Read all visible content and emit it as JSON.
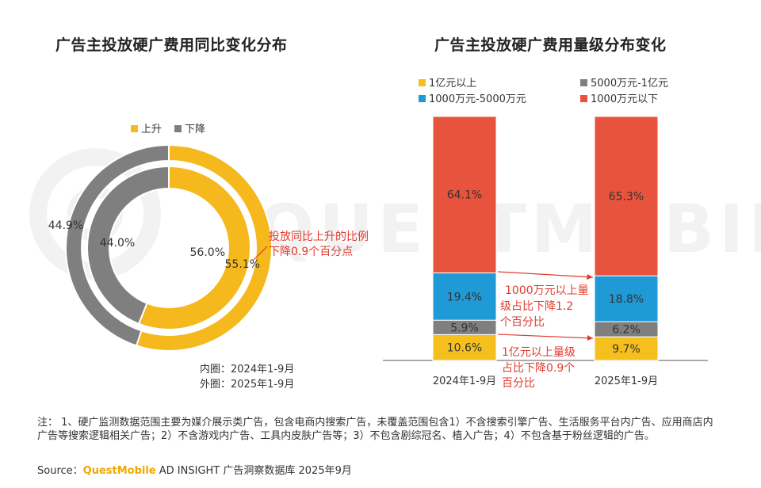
{
  "left_title": "广告主投放硬广费用同比变化分布",
  "right_title": "广告主投放硬广费用量级分布变化",
  "footnote": "注： 1、硬广监测数据范围主要为媒介展示类广告，包含电商内搜索广告，未覆盖范围包含1）不含搜索引擎广告、生活服务平台内广告、应用商店内广告等搜索逻辑相关广告；2）不含游戏内广告、工具内皮肤广告等；3）不包含剧综冠名、植入广告；4）不包含基于粉丝逻辑的广告。",
  "source": {
    "prefix": "Source：",
    "brand": "QuestMobile",
    "suffix": " AD INSIGHT 广告洞察数据库 2025年9月"
  },
  "colors": {
    "rise": "#f5b81d",
    "fall": "#7f7f7f",
    "above_1yi": "#f5c01e",
    "5000w_1yi": "#7f7f7f",
    "1000w_5000w": "#1f9ad6",
    "below_1000w": "#e8533d",
    "annotation": "#e03c2f",
    "watermark": "#f2f2f2"
  },
  "watermark": "QUESTMOBILE",
  "chart_data": [
    {
      "type": "pie",
      "variant": "double-donut",
      "legend": [
        "上升",
        "下降"
      ],
      "legend_position": "top",
      "inner_label": "内圈：2024年1-9月",
      "outer_label": "外圈：2025年1-9月",
      "rings": [
        {
          "name": "2024年1-9月",
          "ring": "inner",
          "slices": [
            {
              "label": "上升",
              "value": 56.0,
              "text": "56.0%"
            },
            {
              "label": "下降",
              "value": 44.0,
              "text": "44.0%"
            }
          ]
        },
        {
          "name": "2025年1-9月",
          "ring": "outer",
          "slices": [
            {
              "label": "上升",
              "value": 55.1,
              "text": "55.1%"
            },
            {
              "label": "下降",
              "value": 44.9,
              "text": "44.9%"
            }
          ]
        }
      ],
      "annotation": [
        "投放同比上升的比例",
        "下降0.9个百分点"
      ]
    },
    {
      "type": "bar",
      "variant": "stacked-100",
      "legend_position": "top",
      "categories": [
        "2024年1-9月",
        "2025年1-9月"
      ],
      "series": [
        {
          "name": "1亿元以上",
          "values": [
            10.6,
            9.7
          ],
          "labels": [
            "10.6%",
            "9.7%"
          ]
        },
        {
          "name": "5000万元-1亿元",
          "values": [
            5.9,
            6.2
          ],
          "labels": [
            "5.9%",
            "6.2%"
          ]
        },
        {
          "name": "1000万元-5000万元",
          "values": [
            19.4,
            18.8
          ],
          "labels": [
            "19.4%",
            "18.8%"
          ]
        },
        {
          "name": "1000万元以下",
          "values": [
            64.1,
            65.3
          ],
          "labels": [
            "64.1%",
            "65.3%"
          ]
        }
      ],
      "ylim": [
        0,
        100
      ],
      "annotations": [
        {
          "lines": [
            "1000万元以上量",
            "级占比下降1.2",
            "个百分比"
          ]
        },
        {
          "lines": [
            "1亿元以上量级",
            "占比下降0.9个",
            "百分比"
          ]
        }
      ]
    }
  ]
}
